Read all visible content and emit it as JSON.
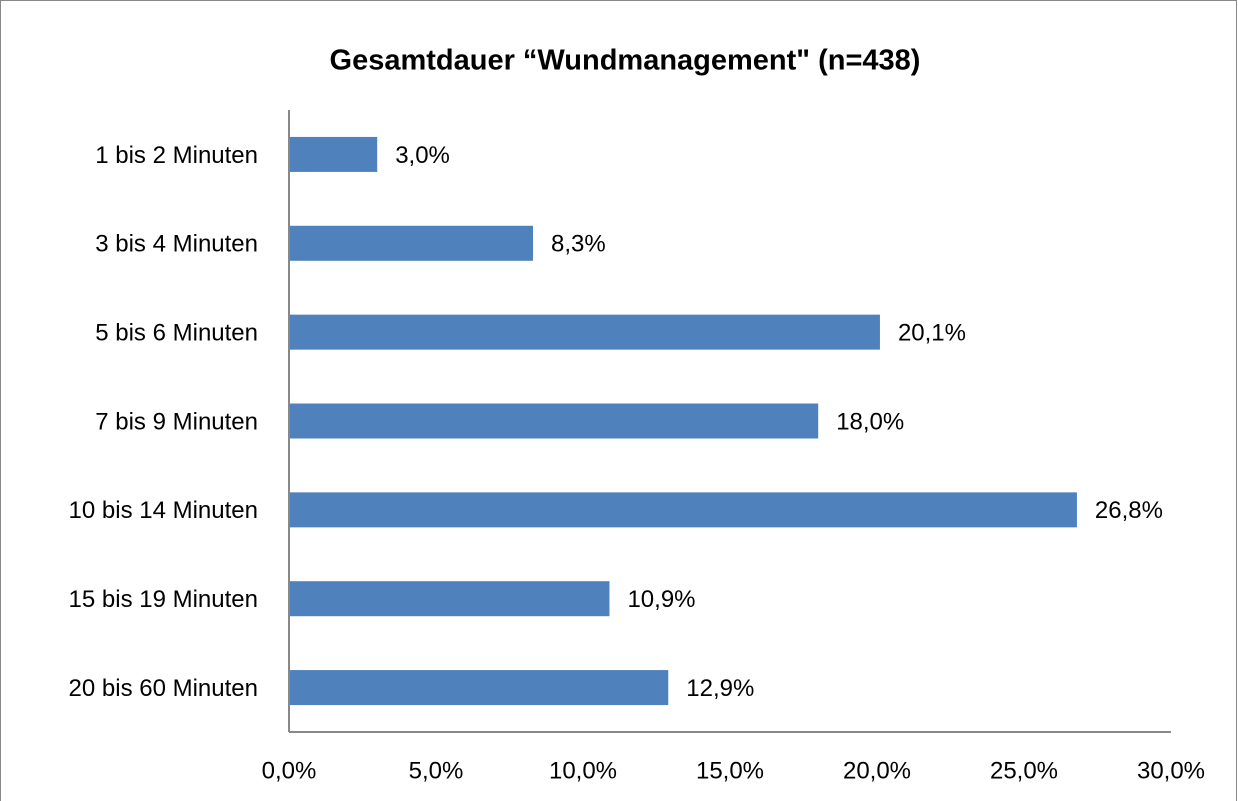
{
  "chart_data": {
    "type": "bar",
    "orientation": "horizontal",
    "title": "Gesamtdauer “Wundmanagement\" (n=438)",
    "categories": [
      "1 bis 2 Minuten",
      "3 bis 4 Minuten",
      "5 bis 6 Minuten",
      "7 bis 9 Minuten",
      "10 bis 14 Minuten",
      "15 bis 19 Minuten",
      "20 bis 60 Minuten"
    ],
    "values": [
      3.0,
      8.3,
      20.1,
      18.0,
      26.8,
      10.9,
      12.9
    ],
    "value_labels": [
      "3,0%",
      "8,3%",
      "20,1%",
      "18,0%",
      "26,8%",
      "10,9%",
      "12,9%"
    ],
    "color": "#4f81bd",
    "xlim": [
      0,
      30
    ],
    "xticks": [
      {
        "value": 0,
        "label": "0,0%"
      },
      {
        "value": 5,
        "label": "5,0%"
      },
      {
        "value": 10,
        "label": "10,0%"
      },
      {
        "value": 15,
        "label": "15,0%"
      },
      {
        "value": 20,
        "label": "20,0%"
      },
      {
        "value": 25,
        "label": "25,0%"
      },
      {
        "value": 30,
        "label": "30,0%"
      }
    ],
    "grid": false
  }
}
